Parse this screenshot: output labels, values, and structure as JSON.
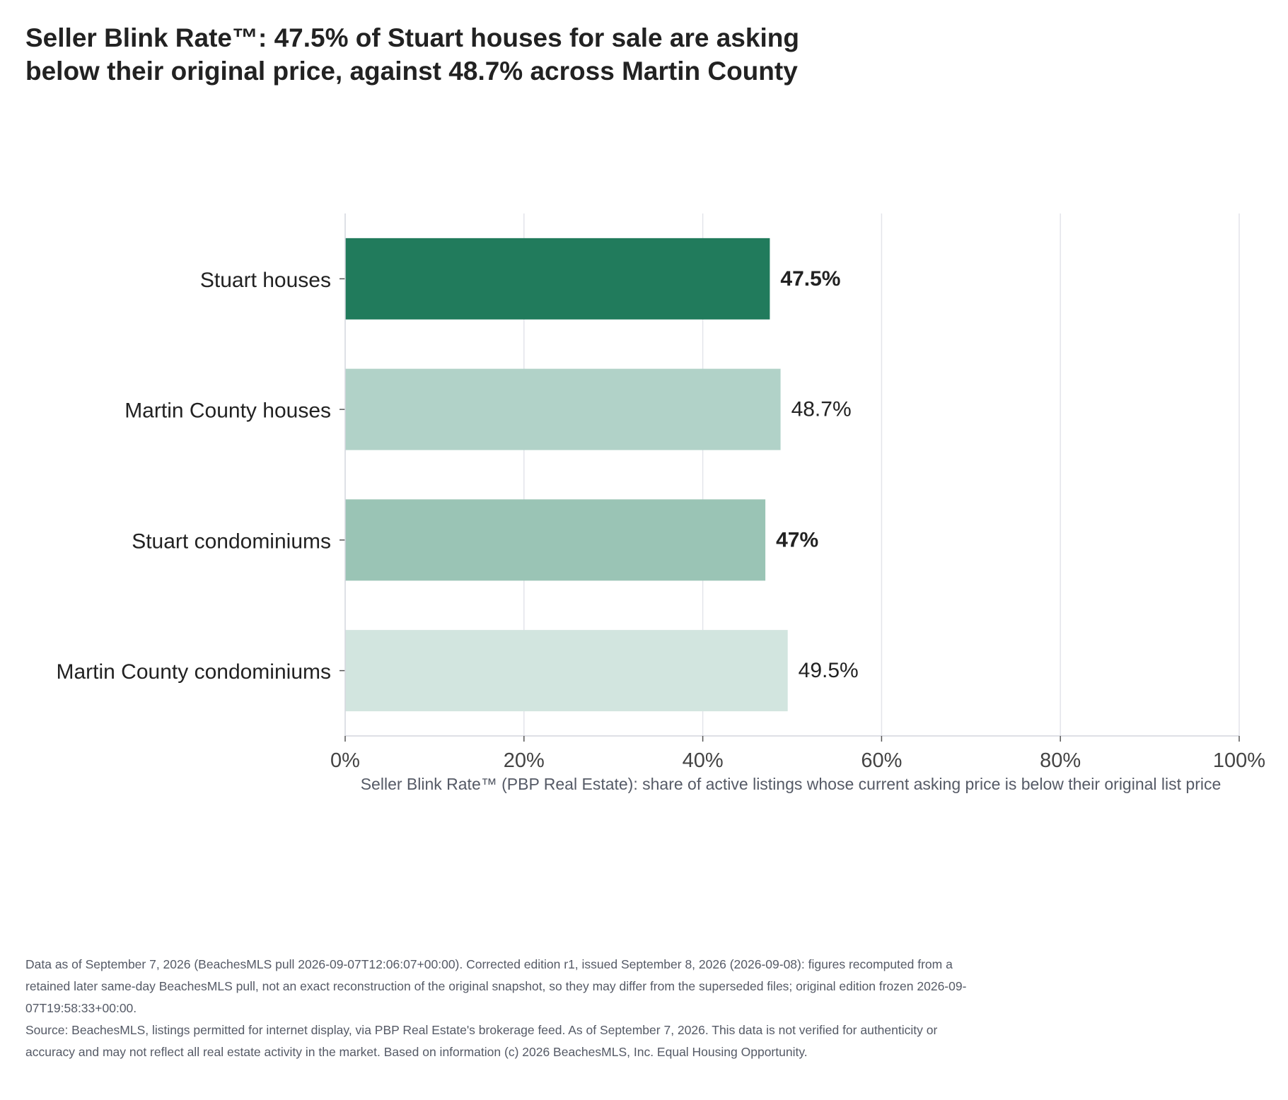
{
  "header": {
    "title_line1": "Seller Blink Rate™: 47.5% of Stuart houses for sale are asking",
    "title_line2": "below their original price, against 48.7% across Martin County"
  },
  "chart_data": {
    "type": "bar",
    "orientation": "horizontal",
    "categories": [
      "Stuart houses",
      "Martin County houses",
      "Stuart condominiums",
      "Martin County condominiums"
    ],
    "values": [
      47.5,
      48.7,
      47,
      49.5
    ],
    "value_labels": [
      "47.5%",
      "48.7%",
      "47%",
      "49.5%"
    ],
    "label_bold": [
      true,
      false,
      true,
      false
    ],
    "bar_colors": [
      "#217b5c",
      "#b1d2c8",
      "#9ac4b5",
      "#d2e5df"
    ],
    "xlim": [
      0,
      100
    ],
    "xticks": [
      0,
      20,
      40,
      60,
      80,
      100
    ],
    "xtick_labels": [
      "0%",
      "20%",
      "40%",
      "60%",
      "80%",
      "100%"
    ],
    "xlabel": "Seller Blink Rate™ (PBP Real Estate): share of active listings whose current asking price is below their original list price",
    "ylabel": "",
    "grid": "vertical"
  },
  "footnote": {
    "data_note": "Data as of September 7, 2026 (BeachesMLS pull 2026-09-07T12:06:07+00:00). Corrected edition r1, issued September 8, 2026 (2026-09-08): figures recomputed from a retained later same-day BeachesMLS pull, not an exact reconstruction of the original snapshot, so they may differ from the superseded files; original edition frozen 2026-09-07T19:58:33+00:00.",
    "source_note": "Source: BeachesMLS, listings permitted for internet display, via PBP Real Estate's brokerage feed. As of September 7, 2026. This data is not verified for authenticity or accuracy and may not reflect all real estate activity in the market. Based on information (c) 2026 BeachesMLS, Inc. Equal Housing Opportunity."
  }
}
